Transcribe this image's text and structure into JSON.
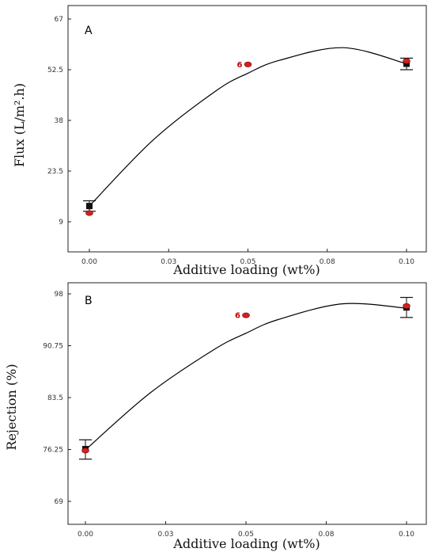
{
  "chart_data": [
    {
      "type": "scatter",
      "panel_label": "A",
      "xlabel": "Additive loading (wt%)",
      "ylabel": "Flux (L/m².h)",
      "xlim": [
        0,
        0.1
      ],
      "ylim": [
        9,
        67
      ],
      "x_ticks": [
        "0.00",
        "0.03",
        "0.05",
        "0.08",
        "0.10"
      ],
      "y_ticks": [
        "9",
        "23.5",
        "38",
        "52.5",
        "67"
      ],
      "grid": false,
      "fit_curve": [
        {
          "x": 0.0,
          "y": 13.5
        },
        {
          "x": 0.02,
          "y": 32.3
        },
        {
          "x": 0.04,
          "y": 46.5
        },
        {
          "x": 0.05,
          "y": 51.5
        },
        {
          "x": 0.06,
          "y": 55.2
        },
        {
          "x": 0.08,
          "y": 58.8
        },
        {
          "x": 0.1,
          "y": 54.2
        }
      ],
      "mean_points": [
        {
          "x": 0.0,
          "y": 13.5,
          "err_low": 12.0,
          "err_high": 15.0
        },
        {
          "x": 0.1,
          "y": 54.2,
          "err_low": 52.5,
          "err_high": 55.8
        }
      ],
      "observed_points": [
        {
          "x": 0.0,
          "y": 11.5
        },
        {
          "x": 0.05,
          "y": 54.0,
          "count": "6"
        },
        {
          "x": 0.1,
          "y": 55.0
        }
      ],
      "colors": {
        "mean": "#111111",
        "observed": "#d42020",
        "curve": "#000000"
      }
    },
    {
      "type": "scatter",
      "panel_label": "B",
      "xlabel": "Additive loading (wt%)",
      "ylabel": "Rejection (%)",
      "xlim": [
        0,
        0.1
      ],
      "ylim": [
        69,
        98
      ],
      "x_ticks": [
        "0.00",
        "0.03",
        "0.05",
        "0.08",
        "0.10"
      ],
      "y_ticks": [
        "69",
        "76.25",
        "83.5",
        "90.75",
        "98"
      ],
      "grid": false,
      "fit_curve": [
        {
          "x": 0.0,
          "y": 76.2
        },
        {
          "x": 0.02,
          "y": 84.1
        },
        {
          "x": 0.04,
          "y": 90.2
        },
        {
          "x": 0.05,
          "y": 92.5
        },
        {
          "x": 0.06,
          "y": 94.4
        },
        {
          "x": 0.08,
          "y": 96.6
        },
        {
          "x": 0.1,
          "y": 96.0
        }
      ],
      "mean_points": [
        {
          "x": 0.0,
          "y": 76.3,
          "err_low": 74.9,
          "err_high": 77.6
        },
        {
          "x": 0.1,
          "y": 96.1,
          "err_low": 94.7,
          "err_high": 97.5
        }
      ],
      "observed_points": [
        {
          "x": 0.0,
          "y": 76.1
        },
        {
          "x": 0.05,
          "y": 95.0,
          "count": "6"
        },
        {
          "x": 0.1,
          "y": 96.3
        }
      ],
      "colors": {
        "mean": "#111111",
        "observed": "#d42020",
        "curve": "#000000"
      }
    }
  ]
}
